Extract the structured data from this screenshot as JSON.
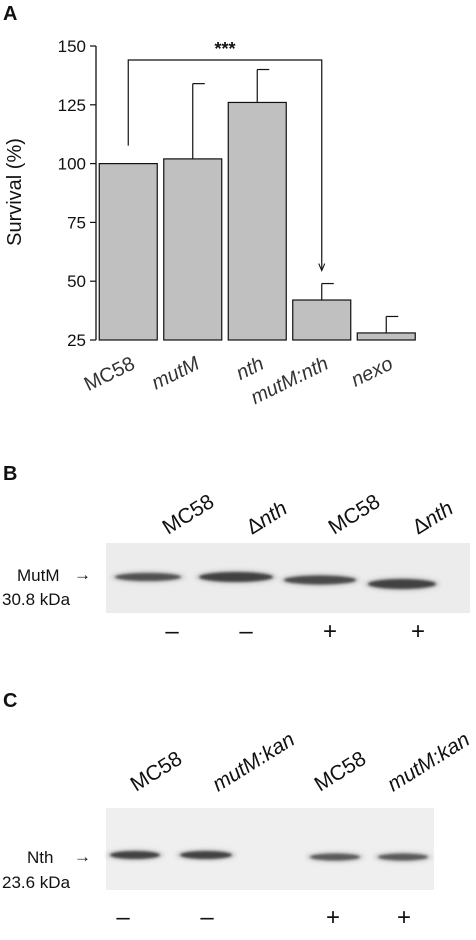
{
  "panels": {
    "a": {
      "letter": "A"
    },
    "b": {
      "letter": "B"
    },
    "c": {
      "letter": "C"
    }
  },
  "chart_data": {
    "type": "bar",
    "ylabel": "Survival (%)",
    "xlabel": "",
    "ylim": [
      25,
      150
    ],
    "yticks": [
      25,
      50,
      75,
      100,
      125,
      150
    ],
    "categories": [
      "MC58",
      "mutM",
      "nth",
      "mutM:nth",
      "nexo"
    ],
    "italic_categories": [
      false,
      true,
      true,
      true,
      true
    ],
    "values": [
      100,
      102,
      126,
      42,
      28
    ],
    "errors": [
      0,
      32,
      14,
      7,
      7
    ],
    "bar_color": "#c0c0c0",
    "significance": {
      "label": "***",
      "from": "MC58",
      "to": "mutM:nth",
      "level": 150
    }
  },
  "blot_b": {
    "lanes": [
      {
        "label": "MC58",
        "prefix": "",
        "italic": false,
        "treatment": "–"
      },
      {
        "label": "nth",
        "prefix": "Δ",
        "italic": true,
        "treatment": "–"
      },
      {
        "label": "MC58",
        "prefix": "",
        "italic": false,
        "treatment": "+"
      },
      {
        "label": "nth",
        "prefix": "Δ",
        "italic": true,
        "treatment": "+"
      }
    ],
    "protein": "MutM",
    "mass": "30.8 kDa",
    "arrow": "→"
  },
  "blot_c": {
    "lanes": [
      {
        "label": "MC58",
        "italic": false,
        "treatment": "–"
      },
      {
        "label": "mutM:kan",
        "italic": true,
        "treatment": "–"
      },
      {
        "label": "MC58",
        "italic": false,
        "treatment": "+"
      },
      {
        "label": "mutM:kan",
        "italic": true,
        "treatment": "+"
      }
    ],
    "protein": "Nth",
    "mass": "23.6 kDa",
    "arrow": "→"
  }
}
